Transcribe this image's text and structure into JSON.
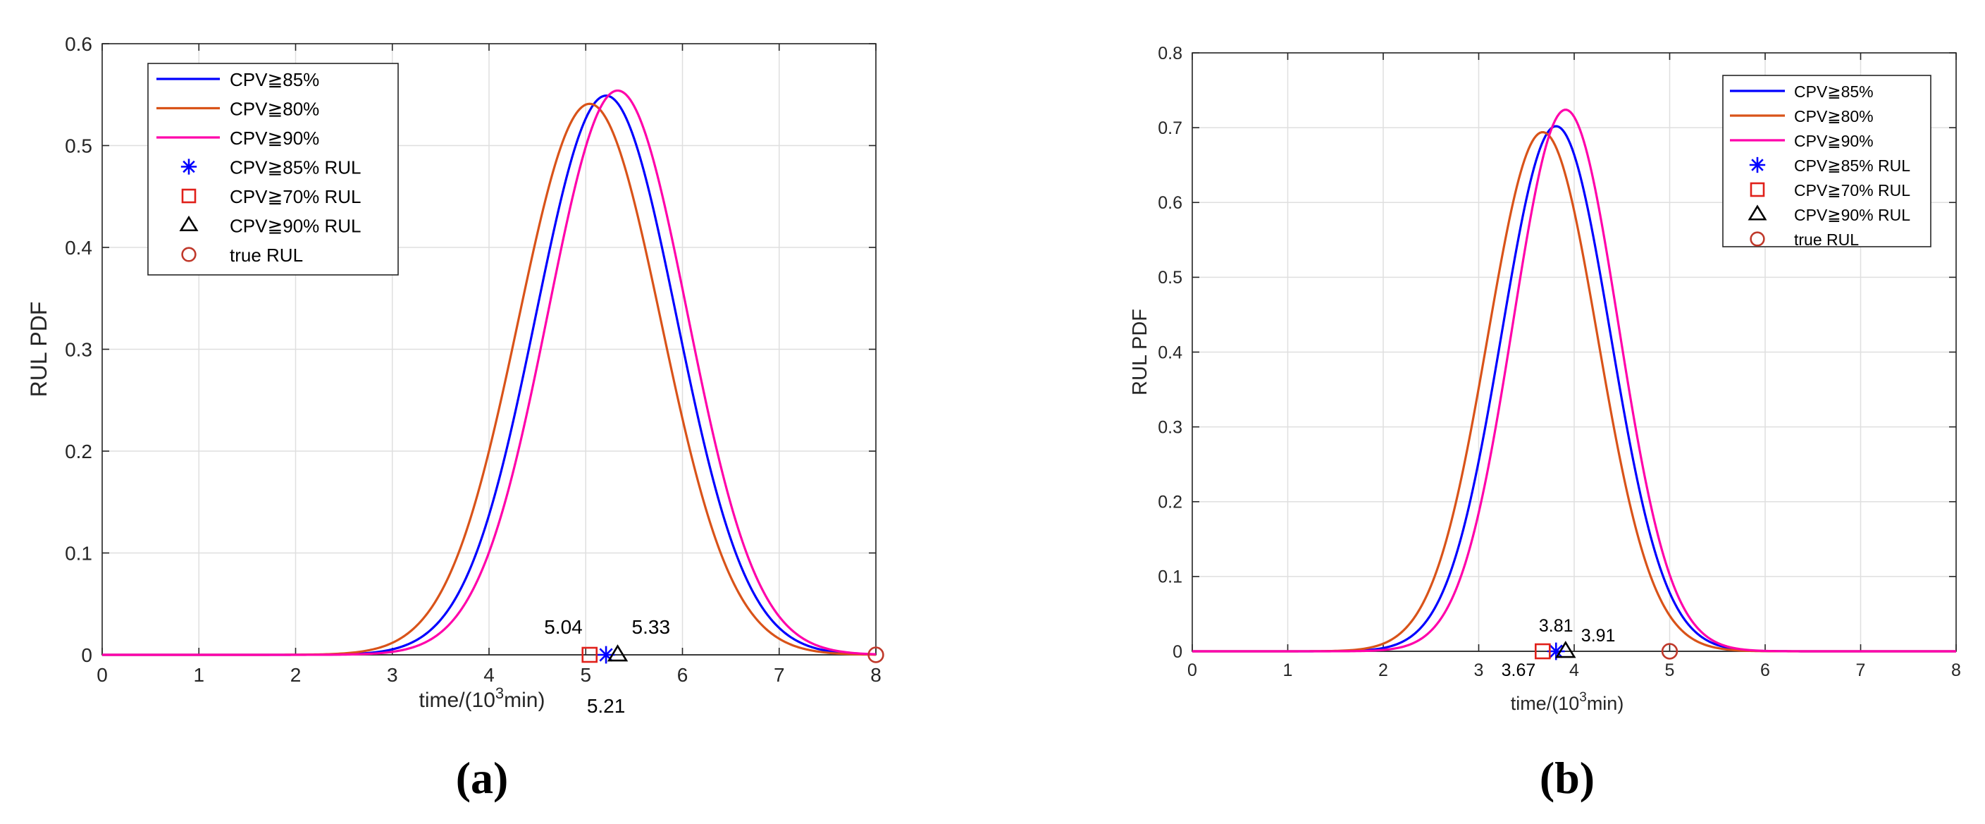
{
  "chart_data": [
    {
      "panel_label": "(a)",
      "type": "line",
      "xlabel": "time/(10³min)",
      "xlabel_parts": {
        "pre": "time/(10",
        "sup": "3",
        "post": "min)"
      },
      "ylabel": "RUL PDF",
      "xlim": [
        0,
        8
      ],
      "ylim": [
        0,
        0.6
      ],
      "xticks": [
        "0",
        "1",
        "2",
        "3",
        "4",
        "5",
        "6",
        "7",
        "8"
      ],
      "yticks": [
        "0",
        "0.1",
        "0.2",
        "0.3",
        "0.4",
        "0.5",
        "0.6"
      ],
      "grid": true,
      "legend_position": "top-left",
      "series": [
        {
          "name": "CPV≧85%",
          "color": "#0000ff",
          "kind": "gaussian",
          "mean": 5.21,
          "peak": 0.549
        },
        {
          "name": "CPV≧80%",
          "color": "#d95319",
          "kind": "gaussian",
          "mean": 5.04,
          "peak": 0.541
        },
        {
          "name": "CPV≧90%",
          "color": "#ff00aa",
          "kind": "gaussian",
          "mean": 5.33,
          "peak": 0.554
        }
      ],
      "markers": [
        {
          "name": "CPV≧85% RUL",
          "marker": "asterisk",
          "color": "#0000ff",
          "x": 5.21,
          "y": 0
        },
        {
          "name": "CPV≧70% RUL",
          "marker": "square",
          "color": "#e0201a",
          "x": 5.04,
          "y": 0
        },
        {
          "name": "CPV≧90% RUL",
          "marker": "triangle",
          "color": "#000000",
          "x": 5.33,
          "y": 0
        },
        {
          "name": "true RUL",
          "marker": "circle",
          "color": "#c0392b",
          "x": 8.0,
          "y": 0
        }
      ],
      "annotations": [
        {
          "text": "5.04",
          "x": 5.04
        },
        {
          "text": "5.33",
          "x": 5.33
        },
        {
          "text": "5.21",
          "x": 5.21
        }
      ]
    },
    {
      "panel_label": "(b)",
      "type": "line",
      "xlabel": "time/(10³min)",
      "xlabel_parts": {
        "pre": "time/(10",
        "sup": "3",
        "post": "min)"
      },
      "ylabel": "RUL PDF",
      "xlim": [
        0,
        8
      ],
      "ylim": [
        0,
        0.8
      ],
      "xticks": [
        "0",
        "1",
        "2",
        "3",
        "4",
        "5",
        "6",
        "7",
        "8"
      ],
      "yticks": [
        "0",
        "0.1",
        "0.2",
        "0.3",
        "0.4",
        "0.5",
        "0.6",
        "0.7",
        "0.8"
      ],
      "grid": true,
      "legend_position": "top-right",
      "series": [
        {
          "name": "CPV≧85%",
          "color": "#0000ff",
          "kind": "gaussian",
          "mean": 3.81,
          "peak": 0.702
        },
        {
          "name": "CPV≧80%",
          "color": "#d95319",
          "kind": "gaussian",
          "mean": 3.67,
          "peak": 0.694
        },
        {
          "name": "CPV≧90%",
          "color": "#ff00aa",
          "kind": "gaussian",
          "mean": 3.91,
          "peak": 0.724
        }
      ],
      "markers": [
        {
          "name": "CPV≧85% RUL",
          "marker": "asterisk",
          "color": "#0000ff",
          "x": 3.81,
          "y": 0
        },
        {
          "name": "CPV≧70% RUL",
          "marker": "square",
          "color": "#e0201a",
          "x": 3.67,
          "y": 0
        },
        {
          "name": "CPV≧90% RUL",
          "marker": "triangle",
          "color": "#000000",
          "x": 3.91,
          "y": 0
        },
        {
          "name": "true RUL",
          "marker": "circle",
          "color": "#c0392b",
          "x": 5.0,
          "y": 0
        }
      ],
      "annotations": [
        {
          "text": "3.81",
          "x": 3.81
        },
        {
          "text": "3.91",
          "x": 3.91
        },
        {
          "text": "3.67",
          "x": 3.67
        }
      ]
    }
  ]
}
